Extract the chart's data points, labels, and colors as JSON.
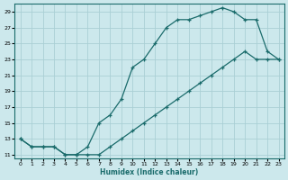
{
  "xlabel": "Humidex (Indice chaleur)",
  "bg_color": "#cce8ec",
  "grid_color": "#aacfd5",
  "line_color": "#1a6b6b",
  "xlim": [
    -0.5,
    23.5
  ],
  "ylim": [
    10.5,
    30.0
  ],
  "xticks": [
    0,
    1,
    2,
    3,
    4,
    5,
    6,
    7,
    8,
    9,
    10,
    11,
    12,
    13,
    14,
    15,
    16,
    17,
    18,
    19,
    20,
    21,
    22,
    23
  ],
  "yticks": [
    11,
    13,
    15,
    17,
    19,
    21,
    23,
    25,
    27,
    29
  ],
  "curve1_x": [
    0,
    1,
    2,
    3,
    4,
    5,
    6,
    7,
    8,
    9,
    10,
    11,
    12,
    13,
    14,
    15,
    16,
    17,
    18,
    19,
    20,
    21,
    22,
    23
  ],
  "curve1_y": [
    13,
    12,
    12,
    12,
    11,
    11,
    12,
    15,
    16,
    18,
    22,
    23,
    25,
    27,
    28,
    28,
    28.5,
    29,
    29.5,
    29,
    28,
    28,
    24,
    23
  ],
  "curve2_x": [
    0,
    1,
    2,
    3,
    4,
    5,
    6,
    7,
    8,
    9,
    10,
    11,
    12,
    13,
    14,
    15,
    16,
    17,
    18,
    19,
    20,
    21,
    22,
    23
  ],
  "curve2_y": [
    13,
    12,
    12,
    12,
    11,
    11,
    11,
    11,
    12,
    13,
    14,
    15,
    16,
    17,
    18,
    19,
    20,
    21,
    22,
    23,
    24,
    23,
    23,
    23
  ]
}
